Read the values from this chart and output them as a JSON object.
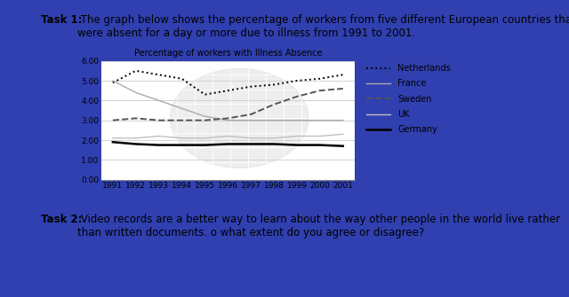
{
  "title": "Percentage of workers with Illness Absence",
  "years": [
    1991,
    1992,
    1993,
    1994,
    1995,
    1996,
    1997,
    1998,
    1999,
    2000,
    2001
  ],
  "netherlands": [
    4.9,
    5.5,
    5.3,
    5.1,
    4.3,
    4.5,
    4.7,
    4.8,
    5.0,
    5.1,
    5.3
  ],
  "france": [
    5.0,
    4.4,
    4.0,
    3.6,
    3.2,
    3.0,
    3.0,
    3.0,
    3.0,
    3.0,
    3.0
  ],
  "sweden": [
    3.0,
    3.1,
    3.0,
    3.0,
    3.0,
    3.1,
    3.3,
    3.8,
    4.2,
    4.5,
    4.6
  ],
  "uk": [
    2.1,
    2.1,
    2.2,
    2.1,
    2.1,
    2.2,
    2.1,
    2.1,
    2.2,
    2.2,
    2.3
  ],
  "germany": [
    1.9,
    1.8,
    1.75,
    1.75,
    1.75,
    1.8,
    1.8,
    1.8,
    1.75,
    1.75,
    1.7
  ],
  "task1_bold": "Task 1:",
  "task1_text": " The graph below shows the percentage of workers from five different European countries that\nwere absent for a day or more due to illness from 1991 to 2001.",
  "task2_bold": "Task 2:",
  "task2_text": " Video records are a better way to learn about the way other people in the world live rather\nthan written documents. o what extent do you agree or disagree?",
  "bg_color": "#3040b0",
  "panel_color": "#ffffff",
  "grid_color": "#cccccc",
  "ylim": [
    0.0,
    6.0
  ],
  "yticks": [
    0.0,
    1.0,
    2.0,
    3.0,
    4.0,
    5.0,
    6.0
  ],
  "legend_labels": [
    "Netherlands",
    "France",
    "Sweden",
    "UK",
    "Germany"
  ],
  "title_fontsize": 7,
  "axis_fontsize": 6.5,
  "legend_fontsize": 7,
  "text_fontsize": 8.5
}
